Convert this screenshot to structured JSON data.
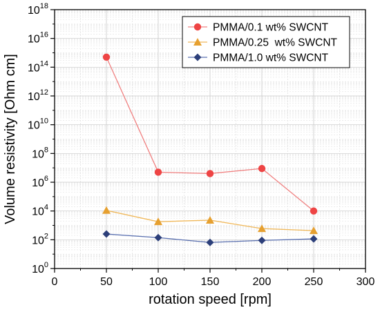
{
  "chart_data": {
    "type": "line",
    "xlabel": "rotation speed [rpm]",
    "ylabel": "Volume resistivity [Ohm cm]",
    "x_scale": "linear",
    "y_scale": "log",
    "xlim": [
      0,
      300
    ],
    "ylim_exp": [
      0,
      18
    ],
    "x_ticks": [
      "0",
      "50",
      "100",
      "150",
      "200",
      "250",
      "300"
    ],
    "y_ticks": [
      {
        "base": "10",
        "exp": "0"
      },
      {
        "base": "10",
        "exp": "2"
      },
      {
        "base": "10",
        "exp": "4"
      },
      {
        "base": "10",
        "exp": "6"
      },
      {
        "base": "10",
        "exp": "8"
      },
      {
        "base": "10",
        "exp": "10"
      },
      {
        "base": "10",
        "exp": "12"
      },
      {
        "base": "10",
        "exp": "14"
      },
      {
        "base": "10",
        "exp": "16"
      },
      {
        "base": "10",
        "exp": "18"
      }
    ],
    "grid": true,
    "legend_position": "top-right",
    "series": [
      {
        "name": "PMMA/0.1 wt% SWCNT",
        "marker": "circle",
        "line_color": "#f08080",
        "marker_color": "#ee4444",
        "x": [
          50,
          100,
          150,
          200,
          250
        ],
        "y": [
          500000000000000.0,
          5000000.0,
          4000000.0,
          9000000.0,
          10000.0
        ]
      },
      {
        "name": "PMMA/0.25  wt% SWCNT",
        "marker": "triangle",
        "line_color": "#f0b85a",
        "marker_color": "#e6a030",
        "x": [
          50,
          100,
          150,
          200,
          250
        ],
        "y": [
          11000.0,
          1800.0,
          2300.0,
          600,
          430
        ]
      },
      {
        "name": "PMMA/1.0 wt% SWCNT",
        "marker": "diamond",
        "line_color": "#5a70b0",
        "marker_color": "#2c3f7a",
        "x": [
          50,
          100,
          150,
          200,
          250
        ],
        "y": [
          250,
          140,
          65,
          90,
          115
        ]
      }
    ]
  }
}
